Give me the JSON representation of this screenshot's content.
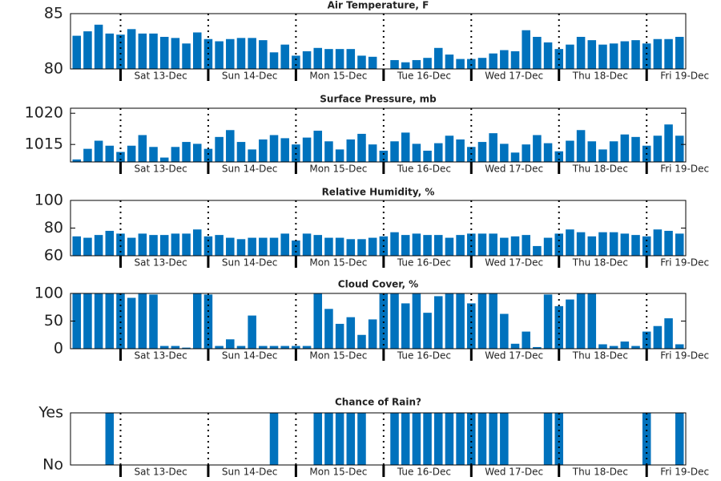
{
  "chart_data": [
    {
      "type": "bar",
      "title": "Air Temperature, F",
      "color": "#0072bd",
      "grid": true,
      "x": [
        0,
        3,
        6,
        9,
        12,
        15,
        18,
        21,
        24,
        27,
        30,
        33,
        36,
        39,
        42,
        45,
        48,
        51,
        54,
        57,
        60,
        63,
        66,
        69,
        72,
        75,
        78,
        81,
        84,
        87,
        90,
        93,
        96,
        99,
        102,
        105,
        108,
        111,
        114,
        117,
        120,
        123,
        126,
        129,
        132,
        135,
        138,
        141,
        144,
        147,
        150,
        153,
        156,
        159,
        162,
        165
      ],
      "values": [
        83.0,
        83.4,
        84.0,
        83.2,
        83.1,
        83.6,
        83.2,
        83.2,
        82.9,
        82.8,
        82.3,
        83.3,
        82.7,
        82.5,
        82.7,
        82.8,
        82.8,
        82.6,
        81.5,
        82.2,
        81.2,
        81.6,
        81.9,
        81.8,
        81.8,
        81.8,
        81.2,
        81.1,
        80.0,
        80.8,
        80.6,
        80.8,
        81.0,
        81.9,
        81.3,
        80.9,
        80.9,
        81.0,
        81.4,
        81.7,
        81.6,
        83.5,
        82.9,
        82.4,
        81.8,
        82.2,
        82.9,
        82.6,
        82.2,
        82.3,
        82.5,
        82.6,
        82.3,
        82.7,
        82.7,
        82.9
      ],
      "xlim": [
        -1.7,
        166.7
      ],
      "ylim": [
        80,
        85
      ],
      "yticks": [
        80,
        85
      ],
      "xticks": [
        {
          "value": 12,
          "label": "Sat 13-Dec"
        },
        {
          "value": 36,
          "label": "Sun 14-Dec"
        },
        {
          "value": 60,
          "label": "Mon 15-Dec"
        },
        {
          "value": 84,
          "label": "Tue 16-Dec"
        },
        {
          "value": 108,
          "label": "Wed 17-Dec"
        },
        {
          "value": 132,
          "label": "Thu 18-Dec"
        },
        {
          "value": 156,
          "label": "Fri 19-Dec"
        }
      ]
    },
    {
      "type": "bar",
      "title": "Surface Pressure, mb",
      "color": "#0072bd",
      "grid": true,
      "x": [
        0,
        3,
        6,
        9,
        12,
        15,
        18,
        21,
        24,
        27,
        30,
        33,
        36,
        39,
        42,
        45,
        48,
        51,
        54,
        57,
        60,
        63,
        66,
        69,
        72,
        75,
        78,
        81,
        84,
        87,
        90,
        93,
        96,
        99,
        102,
        105,
        108,
        111,
        114,
        117,
        120,
        123,
        126,
        129,
        132,
        135,
        138,
        141,
        144,
        147,
        150,
        153,
        156,
        159,
        162,
        165
      ],
      "values": [
        1012.6,
        1014.3,
        1015.6,
        1014.8,
        1013.8,
        1014.8,
        1016.5,
        1014.6,
        1012.9,
        1014.6,
        1015.4,
        1015.1,
        1014.3,
        1016.2,
        1017.3,
        1015.4,
        1014.2,
        1015.8,
        1016.5,
        1016.0,
        1015.0,
        1016.1,
        1017.2,
        1015.5,
        1014.2,
        1015.8,
        1016.7,
        1015.0,
        1014.0,
        1015.5,
        1016.9,
        1015.1,
        1014.0,
        1015.2,
        1016.4,
        1015.8,
        1014.6,
        1015.4,
        1016.8,
        1015.1,
        1013.7,
        1015.0,
        1016.5,
        1015.2,
        1013.9,
        1015.6,
        1017.3,
        1015.5,
        1014.2,
        1015.5,
        1016.6,
        1016.2,
        1014.8,
        1016.4,
        1018.2,
        1016.4
      ],
      "xlim": [
        -1.7,
        166.7
      ],
      "ylim": [
        1012.2,
        1020.8
      ],
      "yticks": [
        1015,
        1020
      ],
      "xticks": [
        {
          "value": 12,
          "label": "Sat 13-Dec"
        },
        {
          "value": 36,
          "label": "Sun 14-Dec"
        },
        {
          "value": 60,
          "label": "Mon 15-Dec"
        },
        {
          "value": 84,
          "label": "Tue 16-Dec"
        },
        {
          "value": 108,
          "label": "Wed 17-Dec"
        },
        {
          "value": 132,
          "label": "Thu 18-Dec"
        },
        {
          "value": 156,
          "label": "Fri 19-Dec"
        }
      ]
    },
    {
      "type": "bar",
      "title": "Relative Humidity, %",
      "color": "#0072bd",
      "grid": true,
      "x": [
        0,
        3,
        6,
        9,
        12,
        15,
        18,
        21,
        24,
        27,
        30,
        33,
        36,
        39,
        42,
        45,
        48,
        51,
        54,
        57,
        60,
        63,
        66,
        69,
        72,
        75,
        78,
        81,
        84,
        87,
        90,
        93,
        96,
        99,
        102,
        105,
        108,
        111,
        114,
        117,
        120,
        123,
        126,
        129,
        132,
        135,
        138,
        141,
        144,
        147,
        150,
        153,
        156,
        159,
        162,
        165
      ],
      "values": [
        74,
        73,
        75,
        78,
        76,
        73,
        76,
        75,
        75,
        76,
        76,
        79,
        74,
        75,
        73,
        72,
        73,
        73,
        73,
        76,
        71,
        76,
        75,
        73,
        73,
        72,
        72,
        73,
        74,
        77,
        75,
        76,
        75,
        75,
        73,
        75,
        76,
        76,
        76,
        73,
        74,
        75,
        67,
        73,
        76,
        79,
        77,
        74,
        77,
        77,
        76,
        75,
        74,
        79,
        78,
        76
      ],
      "xlim": [
        -1.7,
        166.7
      ],
      "ylim": [
        60,
        100
      ],
      "yticks": [
        60,
        80,
        100
      ],
      "xticks": [
        {
          "value": 12,
          "label": "Sat 13-Dec"
        },
        {
          "value": 36,
          "label": "Sun 14-Dec"
        },
        {
          "value": 60,
          "label": "Mon 15-Dec"
        },
        {
          "value": 84,
          "label": "Tue 16-Dec"
        },
        {
          "value": 108,
          "label": "Wed 17-Dec"
        },
        {
          "value": 132,
          "label": "Thu 18-Dec"
        },
        {
          "value": 156,
          "label": "Fri 19-Dec"
        }
      ]
    },
    {
      "type": "bar",
      "title": "Cloud Cover, %",
      "color": "#0072bd",
      "grid": true,
      "x": [
        0,
        3,
        6,
        9,
        12,
        15,
        18,
        21,
        24,
        27,
        30,
        33,
        36,
        39,
        42,
        45,
        48,
        51,
        54,
        57,
        60,
        63,
        66,
        69,
        72,
        75,
        78,
        81,
        84,
        87,
        90,
        93,
        96,
        99,
        102,
        105,
        108,
        111,
        114,
        117,
        120,
        123,
        126,
        129,
        132,
        135,
        138,
        141,
        144,
        147,
        150,
        153,
        156,
        159,
        162,
        165
      ],
      "values": [
        100,
        100,
        100,
        100,
        100,
        92,
        100,
        98,
        5,
        5,
        2,
        100,
        98,
        5,
        17,
        5,
        60,
        5,
        5,
        5,
        5,
        5,
        100,
        72,
        45,
        57,
        25,
        53,
        100,
        100,
        82,
        100,
        65,
        95,
        100,
        100,
        82,
        100,
        100,
        63,
        9,
        31,
        3,
        98,
        77,
        89,
        100,
        100,
        8,
        5,
        13,
        5,
        31,
        41,
        55,
        8
      ],
      "xlim": [
        -1.7,
        166.7
      ],
      "ylim": [
        0,
        100
      ],
      "yticks": [
        0,
        50,
        100
      ],
      "xticks": [
        {
          "value": 12,
          "label": "Sat 13-Dec"
        },
        {
          "value": 36,
          "label": "Sun 14-Dec"
        },
        {
          "value": 60,
          "label": "Mon 15-Dec"
        },
        {
          "value": 84,
          "label": "Tue 16-Dec"
        },
        {
          "value": 108,
          "label": "Wed 17-Dec"
        },
        {
          "value": 132,
          "label": "Thu 18-Dec"
        },
        {
          "value": 156,
          "label": "Fri 19-Dec"
        }
      ]
    },
    {
      "type": "bar",
      "title": "Chance of Rain?",
      "color": "#0072bd",
      "grid": true,
      "x": [
        0,
        3,
        6,
        9,
        12,
        15,
        18,
        21,
        24,
        27,
        30,
        33,
        36,
        39,
        42,
        45,
        48,
        51,
        54,
        57,
        60,
        63,
        66,
        69,
        72,
        75,
        78,
        81,
        84,
        87,
        90,
        93,
        96,
        99,
        102,
        105,
        108,
        111,
        114,
        117,
        120,
        123,
        126,
        129,
        132,
        135,
        138,
        141,
        144,
        147,
        150,
        153,
        156,
        159,
        162,
        165
      ],
      "values": [
        0,
        0,
        0,
        1,
        0,
        0,
        0,
        0,
        0,
        0,
        0,
        0,
        0,
        0,
        0,
        0,
        0,
        0,
        1,
        0,
        0,
        0,
        1,
        1,
        1,
        1,
        1,
        0,
        0,
        1,
        1,
        1,
        1,
        1,
        1,
        1,
        1,
        1,
        1,
        1,
        0,
        0,
        0,
        1,
        1,
        0,
        0,
        0,
        0,
        0,
        0,
        0,
        1,
        0,
        0,
        1
      ],
      "xlim": [
        -1.7,
        166.7
      ],
      "ylim": [
        0,
        1
      ],
      "yticks": [
        {
          "value": 0,
          "label": "No"
        },
        {
          "value": 1,
          "label": "Yes"
        }
      ],
      "xticks": [
        {
          "value": 12,
          "label": "Sat 13-Dec"
        },
        {
          "value": 36,
          "label": "Sun 14-Dec"
        },
        {
          "value": 60,
          "label": "Mon 15-Dec"
        },
        {
          "value": 84,
          "label": "Tue 16-Dec"
        },
        {
          "value": 108,
          "label": "Wed 17-Dec"
        },
        {
          "value": 132,
          "label": "Thu 18-Dec"
        },
        {
          "value": 156,
          "label": "Fri 19-Dec"
        }
      ]
    }
  ]
}
